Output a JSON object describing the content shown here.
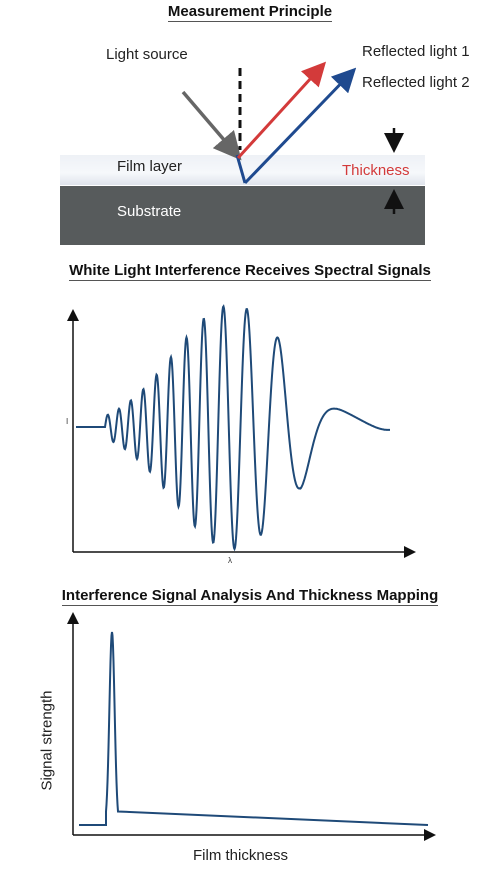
{
  "section1": {
    "title": "Measurement Principle",
    "light_source": "Light source",
    "reflected_1": "Reflected light 1",
    "reflected_2": "Reflected light 2",
    "film_layer": "Film layer",
    "thickness": "Thickness",
    "substrate": "Substrate"
  },
  "section2": {
    "title": "White Light Interference Receives Spectral Signals",
    "y_tick": "I",
    "x_tick": "λ"
  },
  "section3": {
    "title": "Interference Signal Analysis And Thickness Mapping",
    "ylabel": "Signal strength",
    "xlabel": "Film thickness"
  },
  "colors": {
    "reflected_1": "#d33a3a",
    "reflected_2": "#1f4a8f",
    "signal": "#1f4a78",
    "light_source": "#666666"
  }
}
